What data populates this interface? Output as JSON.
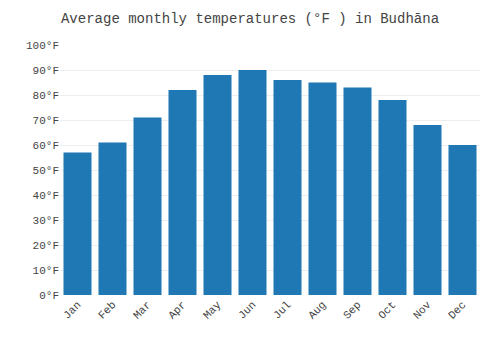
{
  "chart_data": {
    "type": "bar",
    "title": "Average monthly temperatures (°F ) in Budhāna",
    "categories": [
      "Jan",
      "Feb",
      "Mar",
      "Apr",
      "May",
      "Jun",
      "Jul",
      "Aug",
      "Sep",
      "Oct",
      "Nov",
      "Dec"
    ],
    "values": [
      57,
      61,
      71,
      82,
      88,
      90,
      86,
      85,
      83,
      78,
      68,
      60
    ],
    "ylim": [
      0,
      100
    ],
    "yticks": [
      {
        "value": 0,
        "label": "0°F"
      },
      {
        "value": 10,
        "label": "10°F"
      },
      {
        "value": 20,
        "label": "20°F"
      },
      {
        "value": 30,
        "label": "30°F"
      },
      {
        "value": 40,
        "label": "40°F"
      },
      {
        "value": 50,
        "label": "50°F"
      },
      {
        "value": 60,
        "label": "60°F"
      },
      {
        "value": 70,
        "label": "70°F"
      },
      {
        "value": 80,
        "label": "80°F"
      },
      {
        "value": 90,
        "label": "90°F"
      },
      {
        "value": 100,
        "label": "100°F"
      }
    ],
    "grid": true
  }
}
